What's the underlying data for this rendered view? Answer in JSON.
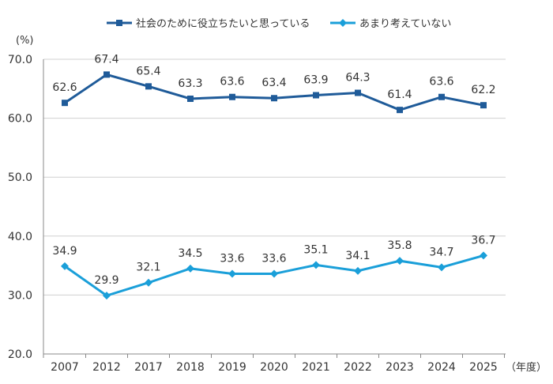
{
  "chart_data": {
    "type": "line",
    "ylabel": "(%)",
    "xlabel": "（年度）",
    "categories": [
      "2007",
      "2012",
      "2017",
      "2018",
      "2019",
      "2020",
      "2021",
      "2022",
      "2023",
      "2024",
      "2025"
    ],
    "ylim": [
      20,
      70
    ],
    "yticks": [
      "20.0",
      "30.0",
      "40.0",
      "50.0",
      "60.0",
      "70.0"
    ],
    "grid": true,
    "legend": "top",
    "series": [
      {
        "name": "社会のために役立ちたいと思っている",
        "color": "#1f5b99",
        "marker": "square",
        "values": [
          62.6,
          67.4,
          65.4,
          63.3,
          63.6,
          63.4,
          63.9,
          64.3,
          61.4,
          63.6,
          62.2
        ]
      },
      {
        "name": "あまり考えていない",
        "color": "#1a9fd9",
        "marker": "diamond",
        "values": [
          34.9,
          29.9,
          32.1,
          34.5,
          33.6,
          33.6,
          35.1,
          34.1,
          35.8,
          34.7,
          36.7
        ]
      }
    ]
  }
}
